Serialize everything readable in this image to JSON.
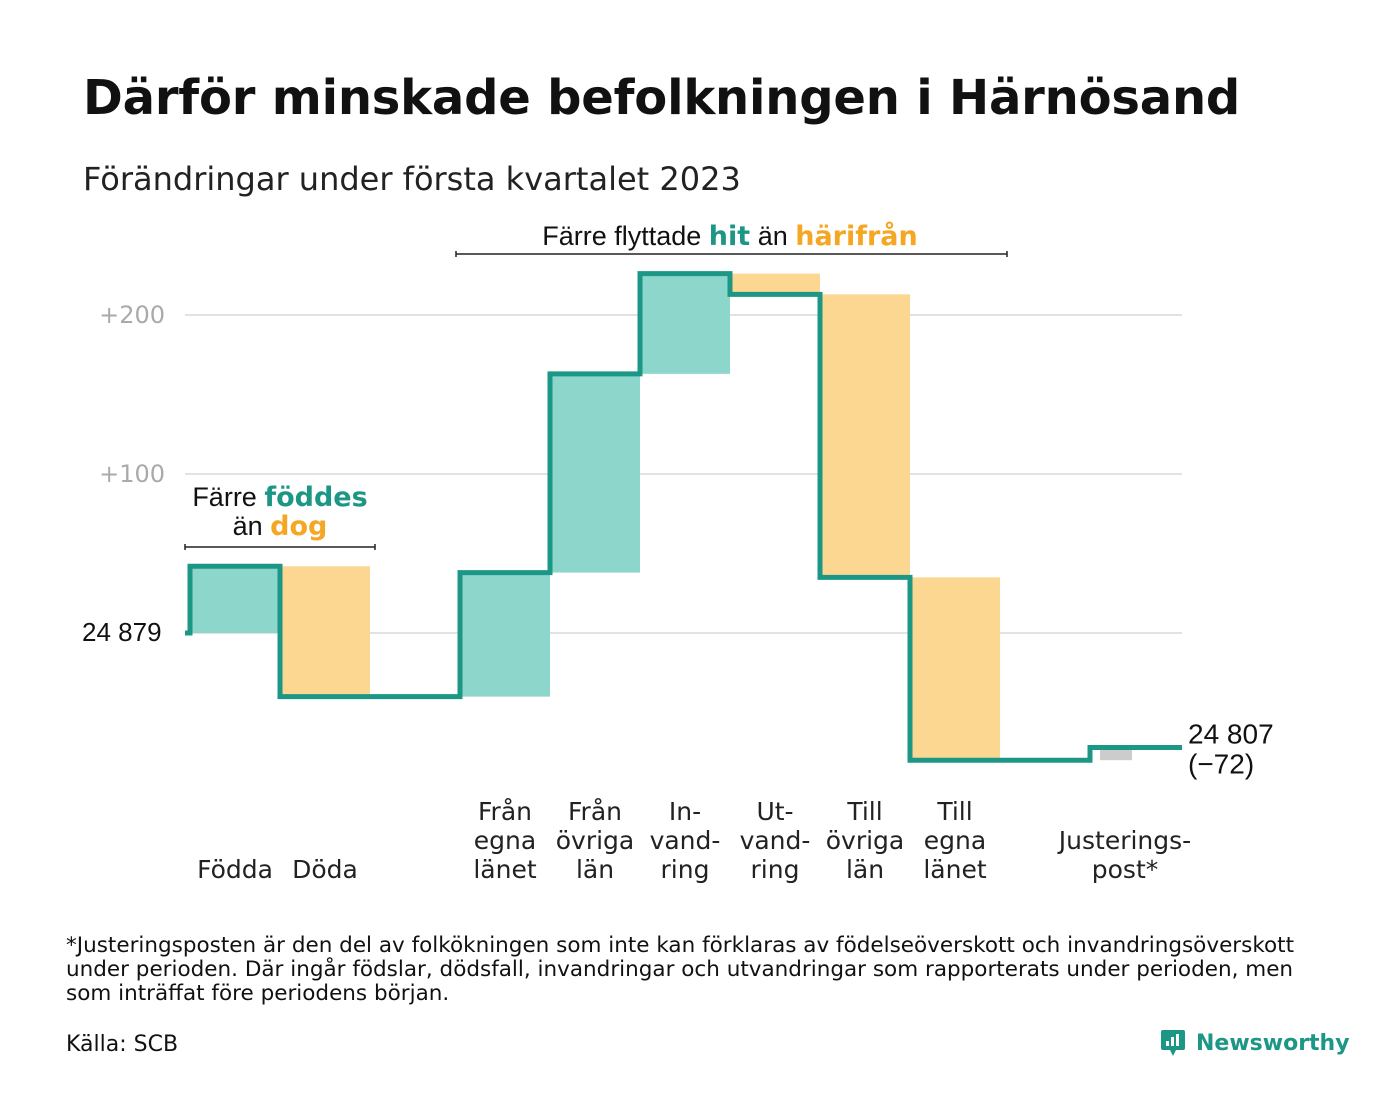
{
  "title": "Därför minskade befolkningen i Härnösand",
  "subtitle": "Förändringar under första kvartalet 2023",
  "colors": {
    "teal": "#1d9785",
    "teal_fill": "#8dd6cc",
    "orange": "#f5a623",
    "orange_fill": "#fbd792",
    "adjust_fill": "#cccccc",
    "grid": "#e2e2e2",
    "tick_text": "#aaaaaa"
  },
  "annotations": {
    "births": {
      "line1": "Färre ",
      "hl1": "föddes",
      "line2": "än ",
      "hl2": "dog"
    },
    "moves": {
      "pre": "Färre flyttade ",
      "hl1": "hit",
      "mid": " än ",
      "hl2": "härifrån"
    }
  },
  "chart_data": {
    "type": "waterfall",
    "title": "Därför minskade befolkningen i Härnösand",
    "subtitle": "Förändringar under första kvartalet 2023",
    "start_value": 24879,
    "start_label": "24 879",
    "end_value": 24807,
    "end_label": "24 807",
    "end_change_label": "(−72)",
    "y_axis": {
      "ticks": [
        {
          "value": 200,
          "label": "+200"
        },
        {
          "value": 100,
          "label": "+100"
        },
        {
          "value": 0,
          "label": ""
        }
      ],
      "range": [
        -85,
        232
      ]
    },
    "steps": [
      {
        "category": "Födda",
        "label_lines": [
          "Födda"
        ],
        "change": 42,
        "kind": "inflow"
      },
      {
        "category": "Döda",
        "label_lines": [
          "Döda"
        ],
        "change": -82,
        "kind": "outflow"
      },
      {
        "category": "",
        "label_lines": [],
        "change": 0,
        "kind": "gap"
      },
      {
        "category": "Från egna länet",
        "label_lines": [
          "Från",
          "egna",
          "länet"
        ],
        "change": 78,
        "kind": "inflow"
      },
      {
        "category": "Från övriga län",
        "label_lines": [
          "Från",
          "övriga",
          "län"
        ],
        "change": 125,
        "kind": "inflow"
      },
      {
        "category": "Invandring",
        "label_lines": [
          "In-",
          "vand-",
          "ring"
        ],
        "change": 63,
        "kind": "inflow"
      },
      {
        "category": "Utvandring",
        "label_lines": [
          "Ut-",
          "vand-",
          "ring"
        ],
        "change": -13,
        "kind": "outflow"
      },
      {
        "category": "Till övriga län",
        "label_lines": [
          "Till",
          "övriga",
          "län"
        ],
        "change": -178,
        "kind": "outflow"
      },
      {
        "category": "Till egna länet",
        "label_lines": [
          "Till",
          "egna",
          "länet"
        ],
        "change": -115,
        "kind": "outflow"
      },
      {
        "category": "",
        "label_lines": [],
        "change": 0,
        "kind": "gap"
      },
      {
        "category": "Justeringspost*",
        "label_lines": [
          "Justerings-",
          "post*"
        ],
        "change": 8,
        "kind": "adjust"
      }
    ]
  },
  "footnote": {
    "line1": "*Justeringsposten är den del av folkökningen som inte kan förklaras av födelseöverskott och invandringsöverskott",
    "line2": "under perioden. Där ingår födslar, dödsfall, invandringar och utvandringar som rapporterats under perioden, men",
    "line3": "som inträffat före periodens början."
  },
  "source": "Källa: SCB",
  "brand": {
    "name": "Newsworthy",
    "icon": "chart-bubble-icon"
  }
}
